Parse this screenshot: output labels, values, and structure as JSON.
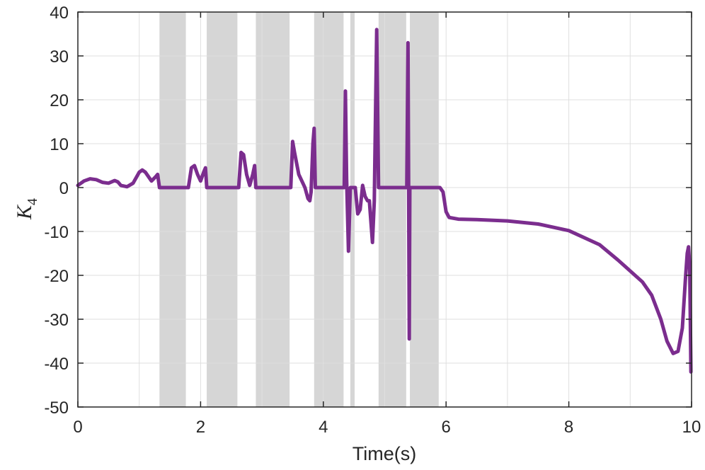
{
  "chart_data": {
    "type": "line",
    "title": "",
    "xlabel": "Time(s)",
    "ylabel": {
      "main": "K",
      "sub": "4"
    },
    "xlim": [
      0,
      10
    ],
    "ylim": [
      -50,
      40
    ],
    "xticks": [
      0,
      2,
      4,
      6,
      8,
      10
    ],
    "yticks": [
      40,
      30,
      20,
      10,
      0,
      -10,
      -20,
      -30,
      -40,
      -50
    ],
    "grid": true,
    "legend": "none",
    "colors": {
      "line": "#7B2D8E",
      "shade": "#D6D6D6",
      "grid": "#DFDFDF",
      "axis": "#262626"
    },
    "shaded_intervals": [
      [
        1.33,
        1.76
      ],
      [
        2.1,
        2.6
      ],
      [
        2.9,
        3.45
      ],
      [
        3.85,
        4.33
      ],
      [
        4.44,
        4.51
      ],
      [
        4.9,
        5.35
      ],
      [
        5.41,
        5.88
      ]
    ],
    "series": [
      {
        "points": [
          [
            0.0,
            0.5
          ],
          [
            0.1,
            1.5
          ],
          [
            0.2,
            2.0
          ],
          [
            0.3,
            1.8
          ],
          [
            0.4,
            1.2
          ],
          [
            0.5,
            1.0
          ],
          [
            0.6,
            1.6
          ],
          [
            0.65,
            1.3
          ],
          [
            0.7,
            0.5
          ],
          [
            0.8,
            0.2
          ],
          [
            0.9,
            1.0
          ],
          [
            1.0,
            3.5
          ],
          [
            1.05,
            4.0
          ],
          [
            1.1,
            3.5
          ],
          [
            1.2,
            1.5
          ],
          [
            1.27,
            2.5
          ],
          [
            1.3,
            3.0
          ],
          [
            1.33,
            0.0
          ],
          [
            1.8,
            0.0
          ],
          [
            1.85,
            4.5
          ],
          [
            1.9,
            5.0
          ],
          [
            1.95,
            3.0
          ],
          [
            2.0,
            1.5
          ],
          [
            2.05,
            3.5
          ],
          [
            2.08,
            4.5
          ],
          [
            2.1,
            0.0
          ],
          [
            2.62,
            0.0
          ],
          [
            2.66,
            8.0
          ],
          [
            2.7,
            7.5
          ],
          [
            2.75,
            3.0
          ],
          [
            2.8,
            0.5
          ],
          [
            2.85,
            3.0
          ],
          [
            2.88,
            5.0
          ],
          [
            2.9,
            0.0
          ],
          [
            3.47,
            0.0
          ],
          [
            3.5,
            10.5
          ],
          [
            3.53,
            8.0
          ],
          [
            3.6,
            3.0
          ],
          [
            3.7,
            0.0
          ],
          [
            3.75,
            -2.5
          ],
          [
            3.78,
            -3.0
          ],
          [
            3.8,
            -1.0
          ],
          [
            3.83,
            10.0
          ],
          [
            3.85,
            13.5
          ],
          [
            3.87,
            0.0
          ],
          [
            4.34,
            0.0
          ],
          [
            4.36,
            22.0
          ],
          [
            4.38,
            2.0
          ],
          [
            4.41,
            -14.5
          ],
          [
            4.44,
            0.0
          ],
          [
            4.52,
            0.0
          ],
          [
            4.56,
            -6.0
          ],
          [
            4.6,
            -5.0
          ],
          [
            4.64,
            0.5
          ],
          [
            4.68,
            -2.0
          ],
          [
            4.72,
            -3.0
          ],
          [
            4.75,
            -3.0
          ],
          [
            4.8,
            -12.5
          ],
          [
            4.83,
            -3.0
          ],
          [
            4.87,
            36.0
          ],
          [
            4.9,
            0.0
          ],
          [
            5.36,
            0.0
          ],
          [
            5.38,
            33.0
          ],
          [
            5.39,
            0.0
          ],
          [
            5.4,
            -34.5
          ],
          [
            5.41,
            0.0
          ],
          [
            5.9,
            0.0
          ],
          [
            5.95,
            -1.0
          ],
          [
            6.0,
            -5.5
          ],
          [
            6.05,
            -6.8
          ],
          [
            6.2,
            -7.2
          ],
          [
            6.5,
            -7.3
          ],
          [
            7.0,
            -7.6
          ],
          [
            7.5,
            -8.3
          ],
          [
            8.0,
            -9.8
          ],
          [
            8.5,
            -13.0
          ],
          [
            8.8,
            -16.5
          ],
          [
            9.0,
            -19.0
          ],
          [
            9.2,
            -21.5
          ],
          [
            9.35,
            -24.5
          ],
          [
            9.5,
            -30.0
          ],
          [
            9.6,
            -35.0
          ],
          [
            9.7,
            -37.8
          ],
          [
            9.78,
            -37.3
          ],
          [
            9.85,
            -32.0
          ],
          [
            9.9,
            -21.0
          ],
          [
            9.93,
            -15.0
          ],
          [
            9.95,
            -13.5
          ],
          [
            9.97,
            -18.0
          ],
          [
            9.99,
            -42.0
          ]
        ]
      }
    ]
  }
}
